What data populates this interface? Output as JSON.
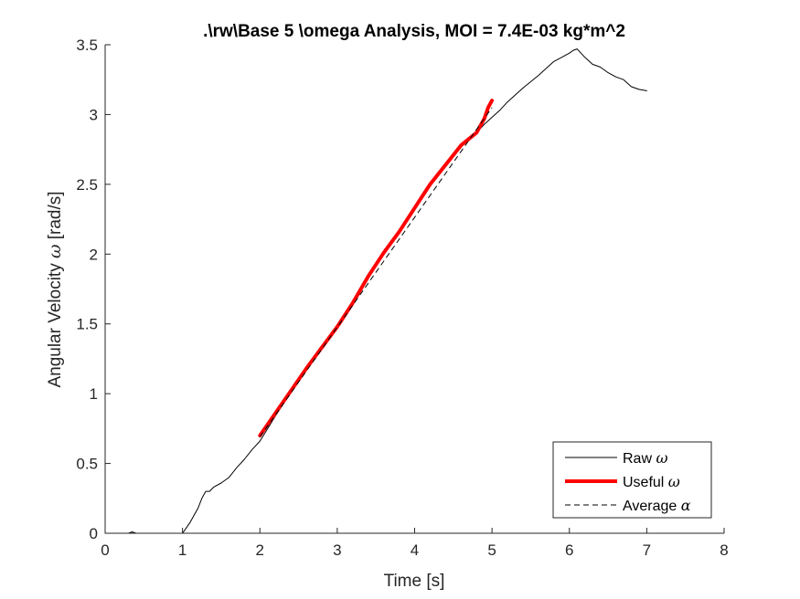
{
  "chart_data": {
    "type": "line",
    "title": ".\\rw\\Base 5 \\omega Analysis, MOI = 7.4E-03 kg*m^2",
    "xlabel": "Time [s]",
    "ylabel": "Angular Velocity ω [rad/s]",
    "xlim": [
      0,
      8
    ],
    "ylim": [
      0,
      3.5
    ],
    "xticks": [
      0,
      1,
      2,
      3,
      4,
      5,
      6,
      7,
      8
    ],
    "xtick_labels": [
      "0",
      "1",
      "2",
      "3",
      "4",
      "5",
      "6",
      "7",
      "8"
    ],
    "yticks": [
      0,
      0.5,
      1,
      1.5,
      2,
      2.5,
      3,
      3.5
    ],
    "ytick_labels": [
      "0",
      "0.5",
      "1",
      "1.5",
      "2",
      "2.5",
      "3",
      "3.5"
    ],
    "legend_position": "bottom-right",
    "series": [
      {
        "name": "Raw ω",
        "color": "#000000",
        "style": "solid-thin",
        "x": [
          0,
          0.3,
          0.35,
          0.4,
          1.0,
          1.05,
          1.1,
          1.15,
          1.2,
          1.25,
          1.3,
          1.35,
          1.4,
          1.5,
          1.6,
          1.7,
          1.8,
          1.9,
          2.0,
          2.2,
          2.4,
          2.6,
          2.8,
          3.0,
          3.2,
          3.4,
          3.6,
          3.8,
          4.0,
          4.2,
          4.4,
          4.6,
          4.8,
          4.9,
          5.0,
          5.1,
          5.2,
          5.4,
          5.6,
          5.8,
          5.9,
          6.0,
          6.05,
          6.1,
          6.15,
          6.2,
          6.3,
          6.4,
          6.5,
          6.6,
          6.7,
          6.8,
          6.9,
          7.0
        ],
        "y": [
          0,
          0,
          0.01,
          0,
          0,
          0.04,
          0.08,
          0.13,
          0.18,
          0.25,
          0.3,
          0.3,
          0.33,
          0.36,
          0.4,
          0.47,
          0.53,
          0.6,
          0.66,
          0.84,
          1.01,
          1.17,
          1.32,
          1.49,
          1.65,
          1.83,
          2.01,
          2.17,
          2.33,
          2.5,
          2.65,
          2.78,
          2.87,
          2.93,
          2.98,
          3.03,
          3.09,
          3.19,
          3.28,
          3.38,
          3.41,
          3.44,
          3.46,
          3.47,
          3.44,
          3.41,
          3.36,
          3.34,
          3.3,
          3.27,
          3.25,
          3.2,
          3.18,
          3.17
        ]
      },
      {
        "name": "Useful ω",
        "color": "#ff0000",
        "style": "solid-thick",
        "x": [
          2.0,
          2.2,
          2.4,
          2.6,
          2.8,
          3.0,
          3.2,
          3.4,
          3.6,
          3.8,
          4.0,
          4.2,
          4.4,
          4.6,
          4.8,
          4.9,
          4.95,
          5.0
        ],
        "y": [
          0.7,
          0.86,
          1.02,
          1.18,
          1.33,
          1.48,
          1.65,
          1.84,
          2.01,
          2.16,
          2.33,
          2.5,
          2.64,
          2.78,
          2.87,
          2.97,
          3.05,
          3.1
        ]
      },
      {
        "name": "Average α",
        "color": "#000000",
        "style": "dashed",
        "x": [
          2.0,
          5.0
        ],
        "y": [
          0.69,
          3.05
        ]
      }
    ]
  }
}
